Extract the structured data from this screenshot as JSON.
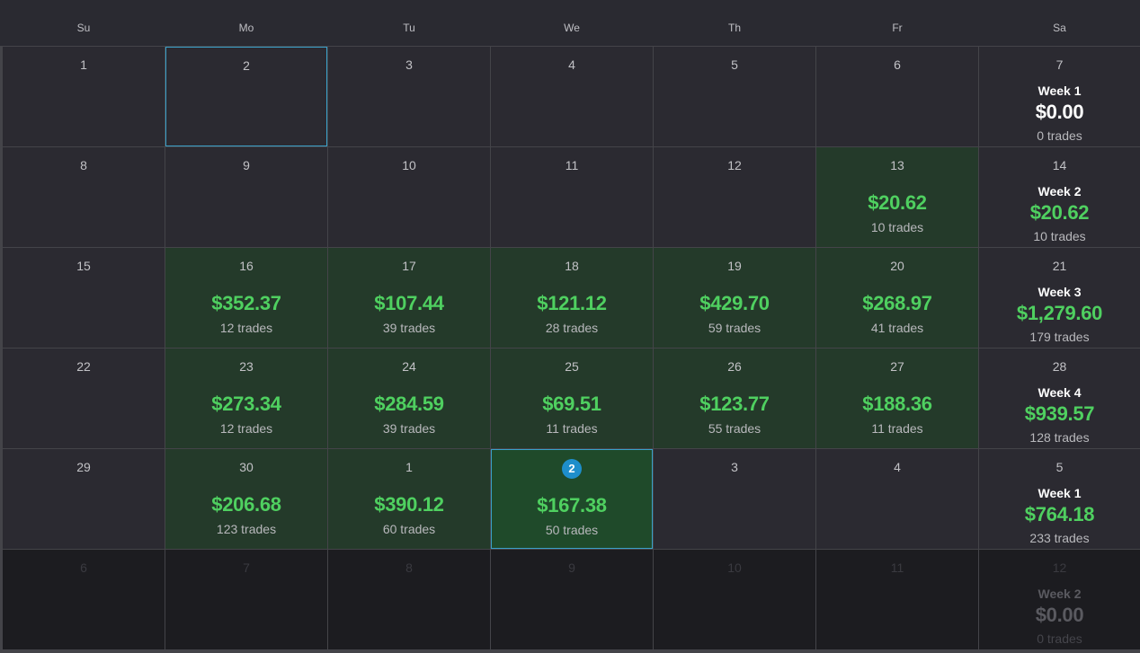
{
  "weekdays": [
    "Su",
    "Mo",
    "Tu",
    "We",
    "Th",
    "Fr",
    "Sa"
  ],
  "colors": {
    "profit": "#4fd060",
    "profit_cell_bg": "#243a2a",
    "today_badge": "#1e8ecb",
    "selection_border": "#3aa0c8"
  },
  "weeks": [
    {
      "days": [
        {
          "num": "1"
        },
        {
          "num": "2",
          "selected": true
        },
        {
          "num": "3"
        },
        {
          "num": "4"
        },
        {
          "num": "5"
        },
        {
          "num": "6"
        }
      ],
      "summary": {
        "day": "7",
        "label": "Week 1",
        "amount": "$0.00",
        "trades": "0 trades",
        "zero": true
      }
    },
    {
      "days": [
        {
          "num": "8"
        },
        {
          "num": "9"
        },
        {
          "num": "10"
        },
        {
          "num": "11"
        },
        {
          "num": "12"
        },
        {
          "num": "13",
          "amount": "$20.62",
          "trades": "10 trades"
        }
      ],
      "summary": {
        "day": "14",
        "label": "Week 2",
        "amount": "$20.62",
        "trades": "10 trades"
      }
    },
    {
      "days": [
        {
          "num": "15"
        },
        {
          "num": "16",
          "amount": "$352.37",
          "trades": "12 trades"
        },
        {
          "num": "17",
          "amount": "$107.44",
          "trades": "39 trades"
        },
        {
          "num": "18",
          "amount": "$121.12",
          "trades": "28 trades"
        },
        {
          "num": "19",
          "amount": "$429.70",
          "trades": "59 trades"
        },
        {
          "num": "20",
          "amount": "$268.97",
          "trades": "41 trades"
        }
      ],
      "summary": {
        "day": "21",
        "label": "Week 3",
        "amount": "$1,279.60",
        "trades": "179 trades"
      }
    },
    {
      "days": [
        {
          "num": "22"
        },
        {
          "num": "23",
          "amount": "$273.34",
          "trades": "12 trades"
        },
        {
          "num": "24",
          "amount": "$284.59",
          "trades": "39 trades"
        },
        {
          "num": "25",
          "amount": "$69.51",
          "trades": "11 trades"
        },
        {
          "num": "26",
          "amount": "$123.77",
          "trades": "55 trades"
        },
        {
          "num": "27",
          "amount": "$188.36",
          "trades": "11 trades"
        }
      ],
      "summary": {
        "day": "28",
        "label": "Week 4",
        "amount": "$939.57",
        "trades": "128 trades"
      }
    },
    {
      "days": [
        {
          "num": "29"
        },
        {
          "num": "30",
          "amount": "$206.68",
          "trades": "123 trades"
        },
        {
          "num": "1",
          "amount": "$390.12",
          "trades": "60 trades"
        },
        {
          "num": "2",
          "amount": "$167.38",
          "trades": "50 trades",
          "today": true
        },
        {
          "num": "3"
        },
        {
          "num": "4"
        }
      ],
      "summary": {
        "day": "5",
        "label": "Week 1",
        "amount": "$764.18",
        "trades": "233 trades"
      }
    },
    {
      "future": true,
      "days": [
        {
          "num": "6"
        },
        {
          "num": "7"
        },
        {
          "num": "8"
        },
        {
          "num": "9"
        },
        {
          "num": "10"
        },
        {
          "num": "11"
        }
      ],
      "summary": {
        "day": "12",
        "label": "Week 2",
        "amount": "$0.00",
        "trades": "0 trades",
        "zero": true
      }
    }
  ]
}
